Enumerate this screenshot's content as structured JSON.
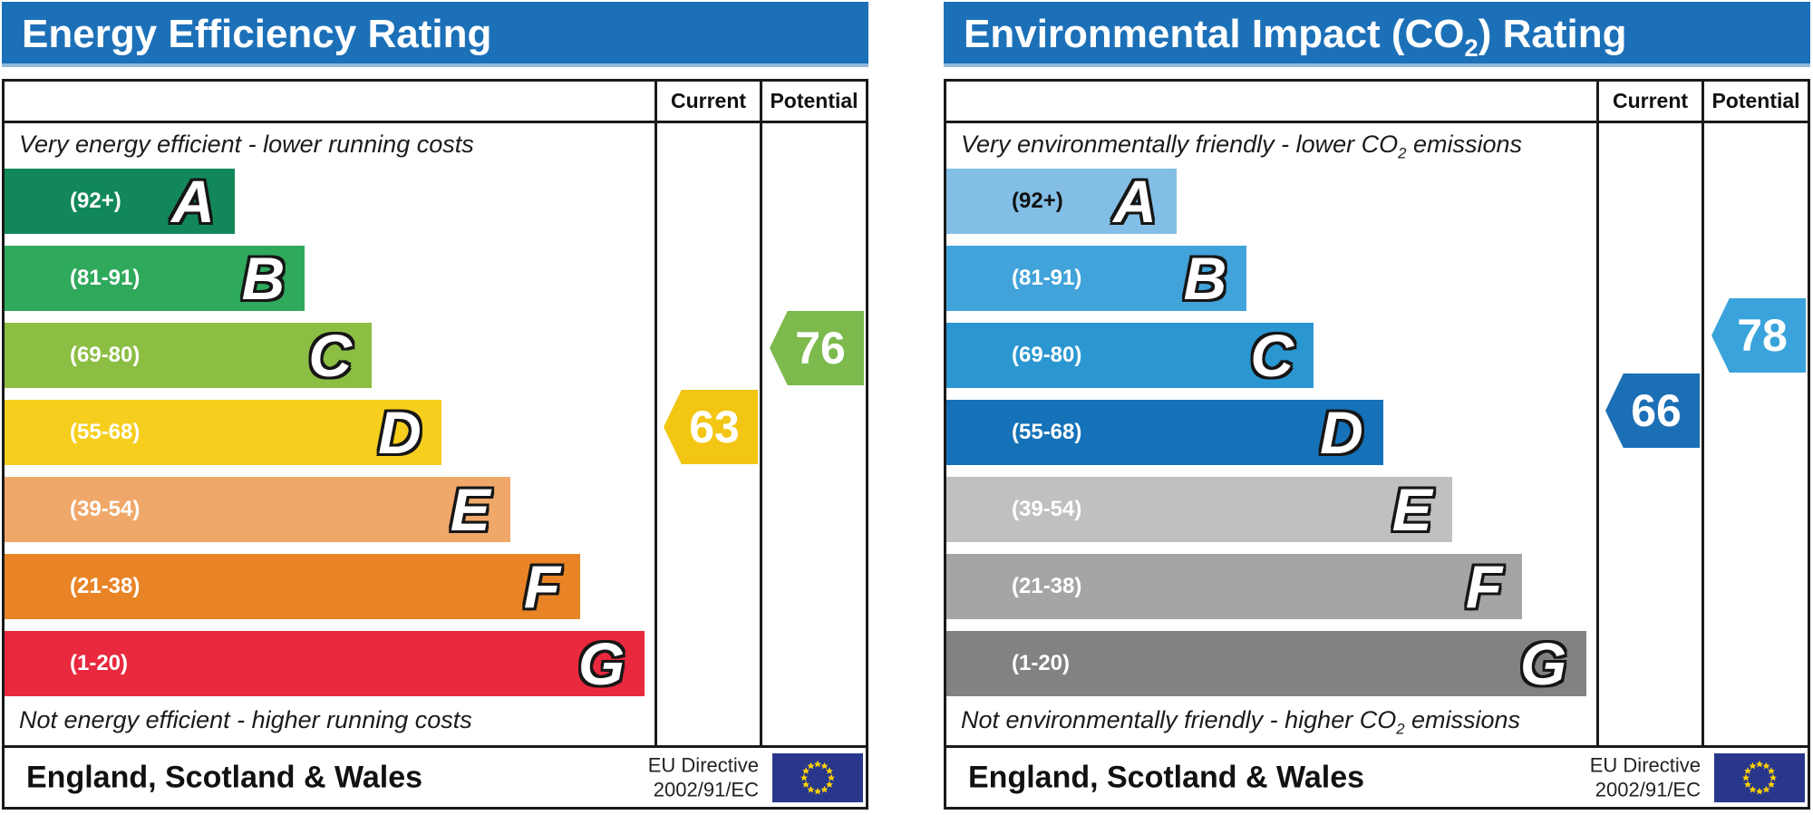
{
  "colors": {
    "page_bg": "#FFFFFF",
    "title_bar": "#1C70B8",
    "border": "#1A1A1A",
    "flag_bg": "#28378C",
    "flag_star": "#FFD200"
  },
  "panels": [
    {
      "title": {
        "pre": "Energy Efficiency Rating",
        "sub": "",
        "post": ""
      },
      "columns": {
        "current": "Current",
        "potential": "Potential"
      },
      "caption_top": {
        "pre": "Very energy efficient - lower running costs",
        "sub": "",
        "post": ""
      },
      "caption_bottom": {
        "pre": "Not energy efficient - higher running costs",
        "sub": "",
        "post": ""
      },
      "footer": {
        "region": "England, Scotland & Wales",
        "directive_line1": "EU Directive",
        "directive_line2": "2002/91/EC"
      }
    },
    {
      "title": {
        "pre": "Environmental Impact (CO",
        "sub": "2",
        "post": ") Rating"
      },
      "columns": {
        "current": "Current",
        "potential": "Potential"
      },
      "caption_top": {
        "pre": "Very environmentally friendly - lower CO",
        "sub": "2",
        "post": " emissions"
      },
      "caption_bottom": {
        "pre": "Not environmentally friendly - higher CO",
        "sub": "2",
        "post": " emissions"
      },
      "footer": {
        "region": "England, Scotland & Wales",
        "directive_line1": "EU Directive",
        "directive_line2": "2002/91/EC"
      }
    }
  ],
  "chart_data": [
    {
      "type": "bar",
      "orientation": "horizontal",
      "title": "Energy Efficiency Rating",
      "bands": [
        {
          "letter": "A",
          "range_label": "(92+)",
          "min": 92,
          "max": 100,
          "width_pct": 35.4,
          "color": "#12885A",
          "label_color": "#FFFFFF"
        },
        {
          "letter": "B",
          "range_label": "(81-91)",
          "min": 81,
          "max": 91,
          "width_pct": 46.2,
          "color": "#2FA95C",
          "label_color": "#FFFFFF"
        },
        {
          "letter": "C",
          "range_label": "(69-80)",
          "min": 69,
          "max": 80,
          "width_pct": 56.5,
          "color": "#8CBE44",
          "label_color": "#FFFFFF"
        },
        {
          "letter": "D",
          "range_label": "(55-68)",
          "min": 55,
          "max": 68,
          "width_pct": 67.2,
          "color": "#F6CE1D",
          "label_color": "#FFFFFF"
        },
        {
          "letter": "E",
          "range_label": "(39-54)",
          "min": 39,
          "max": 54,
          "width_pct": 77.8,
          "color": "#F0A86A",
          "label_color": "#FFFFFF"
        },
        {
          "letter": "F",
          "range_label": "(21-38)",
          "min": 21,
          "max": 38,
          "width_pct": 88.6,
          "color": "#E98426",
          "label_color": "#FFFFFF"
        },
        {
          "letter": "G",
          "range_label": "(1-20)",
          "min": 1,
          "max": 20,
          "width_pct": 98.5,
          "color": "#E8293E",
          "label_color": "#FFFFFF"
        }
      ],
      "current": {
        "value": 63,
        "color": "#F2C613"
      },
      "potential": {
        "value": 76,
        "color": "#7DBA4E"
      }
    },
    {
      "type": "bar",
      "orientation": "horizontal",
      "title": "Environmental Impact (CO2) Rating",
      "bands": [
        {
          "letter": "A",
          "range_label": "(92+)",
          "min": 92,
          "max": 100,
          "width_pct": 35.4,
          "color": "#82BEE5",
          "label_color": "#111111"
        },
        {
          "letter": "B",
          "range_label": "(81-91)",
          "min": 81,
          "max": 91,
          "width_pct": 46.2,
          "color": "#41A3D9",
          "label_color": "#FFFFFF"
        },
        {
          "letter": "C",
          "range_label": "(69-80)",
          "min": 69,
          "max": 80,
          "width_pct": 56.5,
          "color": "#2B97D1",
          "label_color": "#FFFFFF"
        },
        {
          "letter": "D",
          "range_label": "(55-68)",
          "min": 55,
          "max": 68,
          "width_pct": 67.2,
          "color": "#1572B8",
          "label_color": "#FFFFFF"
        },
        {
          "letter": "E",
          "range_label": "(39-54)",
          "min": 39,
          "max": 54,
          "width_pct": 77.8,
          "color": "#C0C0C0",
          "label_color": "#FFFFFF"
        },
        {
          "letter": "F",
          "range_label": "(21-38)",
          "min": 21,
          "max": 38,
          "width_pct": 88.6,
          "color": "#A5A5A5",
          "label_color": "#FFFFFF"
        },
        {
          "letter": "G",
          "range_label": "(1-20)",
          "min": 1,
          "max": 20,
          "width_pct": 98.5,
          "color": "#828282",
          "label_color": "#FFFFFF"
        }
      ],
      "current": {
        "value": 66,
        "color": "#1B6FB5"
      },
      "potential": {
        "value": 78,
        "color": "#3AA3DB"
      }
    }
  ]
}
